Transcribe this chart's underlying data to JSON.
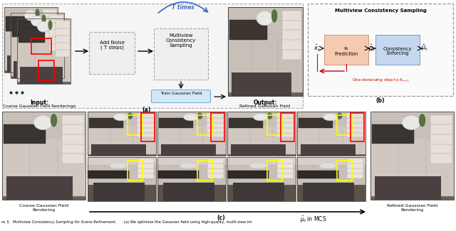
{
  "fig_width": 6.4,
  "fig_height": 3.25,
  "dpi": 100,
  "background": "#ffffff",
  "part_a_label": "(a)",
  "part_b_label": "(b)",
  "part_c_label": "(c)",
  "add_noise_text": "Add Noise\n( T steps)",
  "mcs_text": "Multiview\nConsistency\nSampling",
  "t_times_text": "T times",
  "train_text": "Train Gaussian Field",
  "output_bold": "Output:",
  "output_normal": "Refined Gaussian Field",
  "input_bold": "Input:",
  "input_normal": "Coarse Gaussian Field Renderings",
  "mcs_box_title": "Multiview Consistency Sampling",
  "x0_pred_text": "x₀\nPrediction",
  "consistency_text": "Consistency\nEnforcing",
  "one_denoise_text": "One denoising step to ",
  "coarse_label": "Coarse Gaussian Field\nRendering",
  "refined_label": "Refined Gaussian Field\nRendering",
  "x0_box_color": "#f4cbb0",
  "consistency_box_color": "#c5d8f0",
  "red_text_color": "#cc0000",
  "t_times_color": "#4472c4",
  "train_box_color": "#d0e8f8",
  "train_box_edge": "#7ab0d8"
}
